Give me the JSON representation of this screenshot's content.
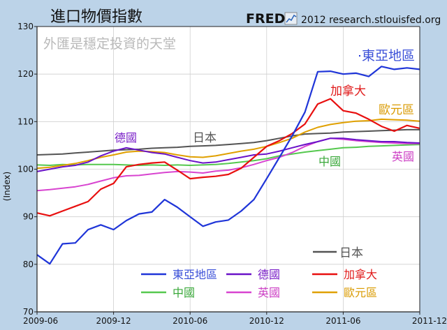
{
  "header": {
    "title": "進口物價指數",
    "fred_logo": "FRED",
    "fred_icon": "chart-line-icon",
    "source": "2012 research.stlouisfed.org"
  },
  "chart_data": {
    "type": "line",
    "title": "進口物價指數",
    "subtitle": "外匯是穩定投資的天堂",
    "xlabel": "",
    "ylabel": "(Index)",
    "ylim": [
      70,
      130
    ],
    "yticks": [
      70,
      80,
      90,
      100,
      110,
      120,
      130
    ],
    "xticks": [
      "2009-06",
      "2009-12",
      "2010-06",
      "2010-12",
      "2011-06",
      "2011-12"
    ],
    "xlim": [
      "2009-06",
      "2011-12"
    ],
    "grid": true,
    "legend_position": "bottom-right",
    "x": [
      "2009-06",
      "2009-07",
      "2009-08",
      "2009-09",
      "2009-10",
      "2009-11",
      "2009-12",
      "2010-01",
      "2010-02",
      "2010-03",
      "2010-04",
      "2010-05",
      "2010-06",
      "2010-07",
      "2010-08",
      "2010-09",
      "2010-10",
      "2010-11",
      "2010-12",
      "2011-01",
      "2011-02",
      "2011-03",
      "2011-04",
      "2011-05",
      "2011-06",
      "2011-07",
      "2011-08",
      "2011-09",
      "2011-10",
      "2011-11",
      "2011-12"
    ],
    "series": [
      {
        "name": "東亞地區",
        "color": "#1f35d8",
        "label_color": "#3b50d8",
        "values": [
          82.0,
          80.1,
          84.3,
          84.5,
          87.3,
          88.3,
          87.3,
          89.2,
          90.6,
          91.0,
          93.6,
          92.0,
          90.0,
          88.0,
          88.9,
          89.3,
          91.2,
          93.6,
          98.0,
          102.5,
          107.0,
          112.0,
          120.5,
          120.6,
          120.0,
          120.2,
          119.5,
          121.6,
          121.0,
          121.3,
          121.0
        ]
      },
      {
        "name": "德國",
        "color": "#6a12c8",
        "label_color": "#7b22c8",
        "values": [
          99.5,
          100.0,
          100.5,
          100.8,
          101.5,
          102.8,
          103.8,
          104.5,
          104.0,
          103.5,
          103.2,
          102.5,
          101.8,
          101.3,
          101.5,
          102.0,
          102.5,
          103.0,
          103.2,
          103.8,
          104.5,
          105.2,
          105.8,
          106.5,
          106.5,
          106.2,
          106.0,
          105.8,
          105.8,
          105.6,
          105.5
        ]
      },
      {
        "name": "加拿大",
        "color": "#e80f0f",
        "label_color": "#e01a1a",
        "values": [
          90.8,
          90.2,
          91.2,
          92.2,
          93.2,
          95.8,
          97.0,
          100.5,
          101.0,
          101.3,
          101.5,
          99.8,
          98.0,
          98.3,
          98.5,
          98.9,
          100.2,
          102.5,
          104.8,
          106.0,
          107.5,
          109.5,
          113.7,
          114.8,
          112.3,
          111.8,
          110.5,
          109.0,
          108.0,
          109.2,
          108.6
        ]
      },
      {
        "name": "日本",
        "color": "#545454",
        "label_color": "#555555",
        "values": [
          103.0,
          103.1,
          103.2,
          103.4,
          103.6,
          103.8,
          104.0,
          104.1,
          104.2,
          104.4,
          104.5,
          104.6,
          104.8,
          104.9,
          105.0,
          105.2,
          105.4,
          105.6,
          106.0,
          106.5,
          107.0,
          107.4,
          107.5,
          107.6,
          107.8,
          107.9,
          108.0,
          108.1,
          108.2,
          108.3,
          108.3
        ]
      },
      {
        "name": "中國",
        "color": "#55c84e",
        "label_color": "#3aa83a",
        "values": [
          100.9,
          100.8,
          101.0,
          100.9,
          101.0,
          101.0,
          101.0,
          100.9,
          100.8,
          100.9,
          100.8,
          100.9,
          100.8,
          100.9,
          101.0,
          101.2,
          101.5,
          101.8,
          102.2,
          102.8,
          103.2,
          103.6,
          103.9,
          104.2,
          104.5,
          104.6,
          104.8,
          104.9,
          105.0,
          105.1,
          105.2
        ]
      },
      {
        "name": "英國",
        "color": "#d844d0",
        "label_color": "#cc3fc4",
        "values": [
          95.5,
          95.7,
          96.0,
          96.3,
          96.8,
          97.5,
          98.2,
          98.6,
          98.7,
          99.0,
          99.3,
          99.5,
          99.4,
          99.2,
          99.6,
          99.8,
          100.3,
          101.0,
          101.8,
          102.5,
          103.5,
          104.8,
          105.8,
          106.5,
          106.3,
          106.0,
          105.8,
          105.6,
          105.5,
          105.4,
          105.4
        ]
      },
      {
        "name": "歐元區",
        "color": "#e0a000",
        "label_color": "#d99a00",
        "values": [
          100.2,
          100.4,
          100.8,
          101.2,
          101.8,
          102.5,
          103.0,
          103.6,
          103.8,
          103.7,
          103.5,
          103.0,
          102.6,
          102.5,
          102.8,
          103.3,
          103.8,
          104.2,
          104.8,
          105.6,
          106.5,
          107.8,
          108.8,
          109.4,
          109.8,
          110.1,
          110.2,
          110.5,
          110.4,
          110.3,
          110.1
        ]
      }
    ],
    "annotations": [
      {
        "text": "東亞地區",
        "series": 0
      },
      {
        "text": "加拿大",
        "series": 2
      },
      {
        "text": "歐元區",
        "series": 6
      },
      {
        "text": "德國",
        "series": 1
      },
      {
        "text": "日本",
        "series": 3
      },
      {
        "text": "中國",
        "series": 4
      },
      {
        "text": "英國",
        "series": 5
      },
      {
        "text": "日本",
        "series": 3
      }
    ],
    "legend": [
      {
        "text": "東亞地區",
        "series": 0
      },
      {
        "text": "德國",
        "series": 1
      },
      {
        "text": "加拿大",
        "series": 2
      },
      {
        "text": "中國",
        "series": 4
      },
      {
        "text": "英國",
        "series": 5
      },
      {
        "text": "歐元區",
        "series": 6
      }
    ]
  }
}
